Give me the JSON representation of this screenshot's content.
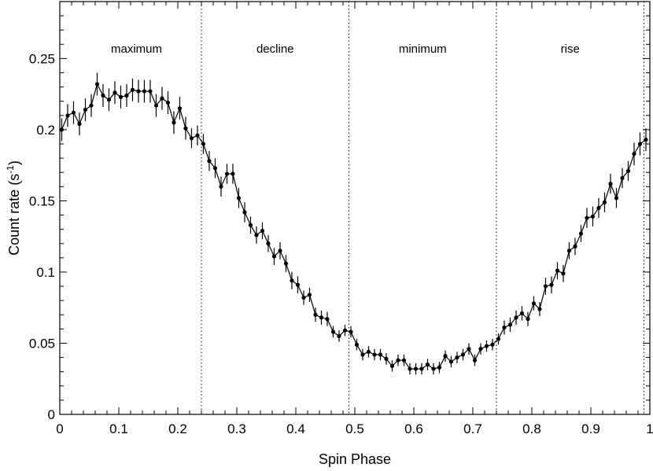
{
  "chart_data": {
    "type": "line",
    "title": "",
    "xlabel": "Spin Phase",
    "ylabel": "Count rate (s",
    "ylabel_sup": "-1",
    "ylabel_close": ")",
    "xlim": [
      0,
      1
    ],
    "ylim": [
      0,
      0.29
    ],
    "xticks": [
      0,
      0.1,
      0.2,
      0.3,
      0.4,
      0.5,
      0.6,
      0.7,
      0.8,
      0.9,
      1
    ],
    "xtick_labels": [
      "0",
      "0.1",
      "0.2",
      "0.3",
      "0.4",
      "0.5",
      "0.6",
      "0.7",
      "0.8",
      "0.9",
      "1"
    ],
    "yticks": [
      0,
      0.05,
      0.1,
      0.15,
      0.2,
      0.25
    ],
    "ytick_labels": [
      "0",
      "0.05",
      "0.1",
      "0.15",
      "0.2",
      "0.25"
    ],
    "grid": false,
    "legend": "none",
    "color": "#000000",
    "regions": [
      {
        "label": "maximum",
        "center": 0.13
      },
      {
        "label": "decline",
        "center": 0.365
      },
      {
        "label": "minimum",
        "center": 0.615
      },
      {
        "label": "rise",
        "center": 0.865
      }
    ],
    "boundaries": [
      0.24,
      0.49,
      0.74,
      0.99
    ],
    "series": [
      {
        "x": [
          0.0033,
          0.0133,
          0.0233,
          0.0333,
          0.0433,
          0.0533,
          0.0633,
          0.0733,
          0.0833,
          0.0933,
          0.1033,
          0.1133,
          0.1233,
          0.1333,
          0.1433,
          0.1533,
          0.1633,
          0.1733,
          0.1833,
          0.1933,
          0.2033,
          0.2133,
          0.2233,
          0.2333,
          0.2433,
          0.2533,
          0.2633,
          0.2733,
          0.2833,
          0.2933,
          0.3033,
          0.3133,
          0.3233,
          0.3333,
          0.3433,
          0.3533,
          0.3633,
          0.3733,
          0.3833,
          0.3933,
          0.4033,
          0.4133,
          0.4233,
          0.4333,
          0.4433,
          0.4533,
          0.4633,
          0.4733,
          0.4833,
          0.4933,
          0.5033,
          0.5133,
          0.5233,
          0.5333,
          0.5433,
          0.5533,
          0.5633,
          0.5733,
          0.5833,
          0.5933,
          0.6033,
          0.6133,
          0.6233,
          0.6333,
          0.6433,
          0.6533,
          0.6633,
          0.6733,
          0.6833,
          0.6933,
          0.7033,
          0.7133,
          0.7233,
          0.7333,
          0.7433,
          0.7533,
          0.7633,
          0.7733,
          0.7833,
          0.7933,
          0.8033,
          0.8133,
          0.8233,
          0.8333,
          0.8433,
          0.8533,
          0.8633,
          0.8733,
          0.8833,
          0.8933,
          0.9033,
          0.9133,
          0.9233,
          0.9333,
          0.9433,
          0.9533,
          0.9633,
          0.9733,
          0.9833,
          0.9933
        ],
        "y": [
          0.2,
          0.21,
          0.212,
          0.204,
          0.214,
          0.217,
          0.232,
          0.224,
          0.221,
          0.226,
          0.223,
          0.224,
          0.228,
          0.227,
          0.227,
          0.227,
          0.217,
          0.222,
          0.219,
          0.205,
          0.215,
          0.201,
          0.194,
          0.196,
          0.19,
          0.178,
          0.173,
          0.16,
          0.169,
          0.169,
          0.152,
          0.142,
          0.133,
          0.126,
          0.129,
          0.12,
          0.111,
          0.115,
          0.106,
          0.094,
          0.091,
          0.082,
          0.084,
          0.07,
          0.068,
          0.067,
          0.058,
          0.055,
          0.059,
          0.058,
          0.049,
          0.042,
          0.044,
          0.042,
          0.042,
          0.039,
          0.034,
          0.038,
          0.038,
          0.032,
          0.032,
          0.032,
          0.035,
          0.032,
          0.033,
          0.041,
          0.037,
          0.04,
          0.042,
          0.046,
          0.038,
          0.046,
          0.048,
          0.049,
          0.053,
          0.061,
          0.063,
          0.068,
          0.071,
          0.067,
          0.078,
          0.074,
          0.09,
          0.091,
          0.101,
          0.099,
          0.115,
          0.118,
          0.127,
          0.138,
          0.139,
          0.145,
          0.149,
          0.162,
          0.152,
          0.166,
          0.171,
          0.183,
          0.19,
          0.193
        ],
        "err": [
          0.008,
          0.008,
          0.008,
          0.008,
          0.008,
          0.008,
          0.008,
          0.008,
          0.008,
          0.008,
          0.008,
          0.008,
          0.008,
          0.008,
          0.008,
          0.008,
          0.008,
          0.008,
          0.008,
          0.008,
          0.008,
          0.008,
          0.007,
          0.007,
          0.007,
          0.007,
          0.007,
          0.007,
          0.007,
          0.007,
          0.007,
          0.007,
          0.006,
          0.006,
          0.006,
          0.006,
          0.006,
          0.006,
          0.006,
          0.006,
          0.006,
          0.005,
          0.005,
          0.005,
          0.005,
          0.005,
          0.004,
          0.004,
          0.004,
          0.004,
          0.004,
          0.004,
          0.004,
          0.004,
          0.004,
          0.004,
          0.004,
          0.004,
          0.004,
          0.004,
          0.004,
          0.004,
          0.004,
          0.004,
          0.004,
          0.004,
          0.004,
          0.004,
          0.004,
          0.004,
          0.004,
          0.004,
          0.004,
          0.004,
          0.004,
          0.005,
          0.005,
          0.005,
          0.005,
          0.005,
          0.005,
          0.005,
          0.006,
          0.006,
          0.006,
          0.006,
          0.006,
          0.006,
          0.006,
          0.007,
          0.007,
          0.007,
          0.007,
          0.007,
          0.007,
          0.007,
          0.007,
          0.008,
          0.008,
          0.008
        ]
      }
    ]
  }
}
